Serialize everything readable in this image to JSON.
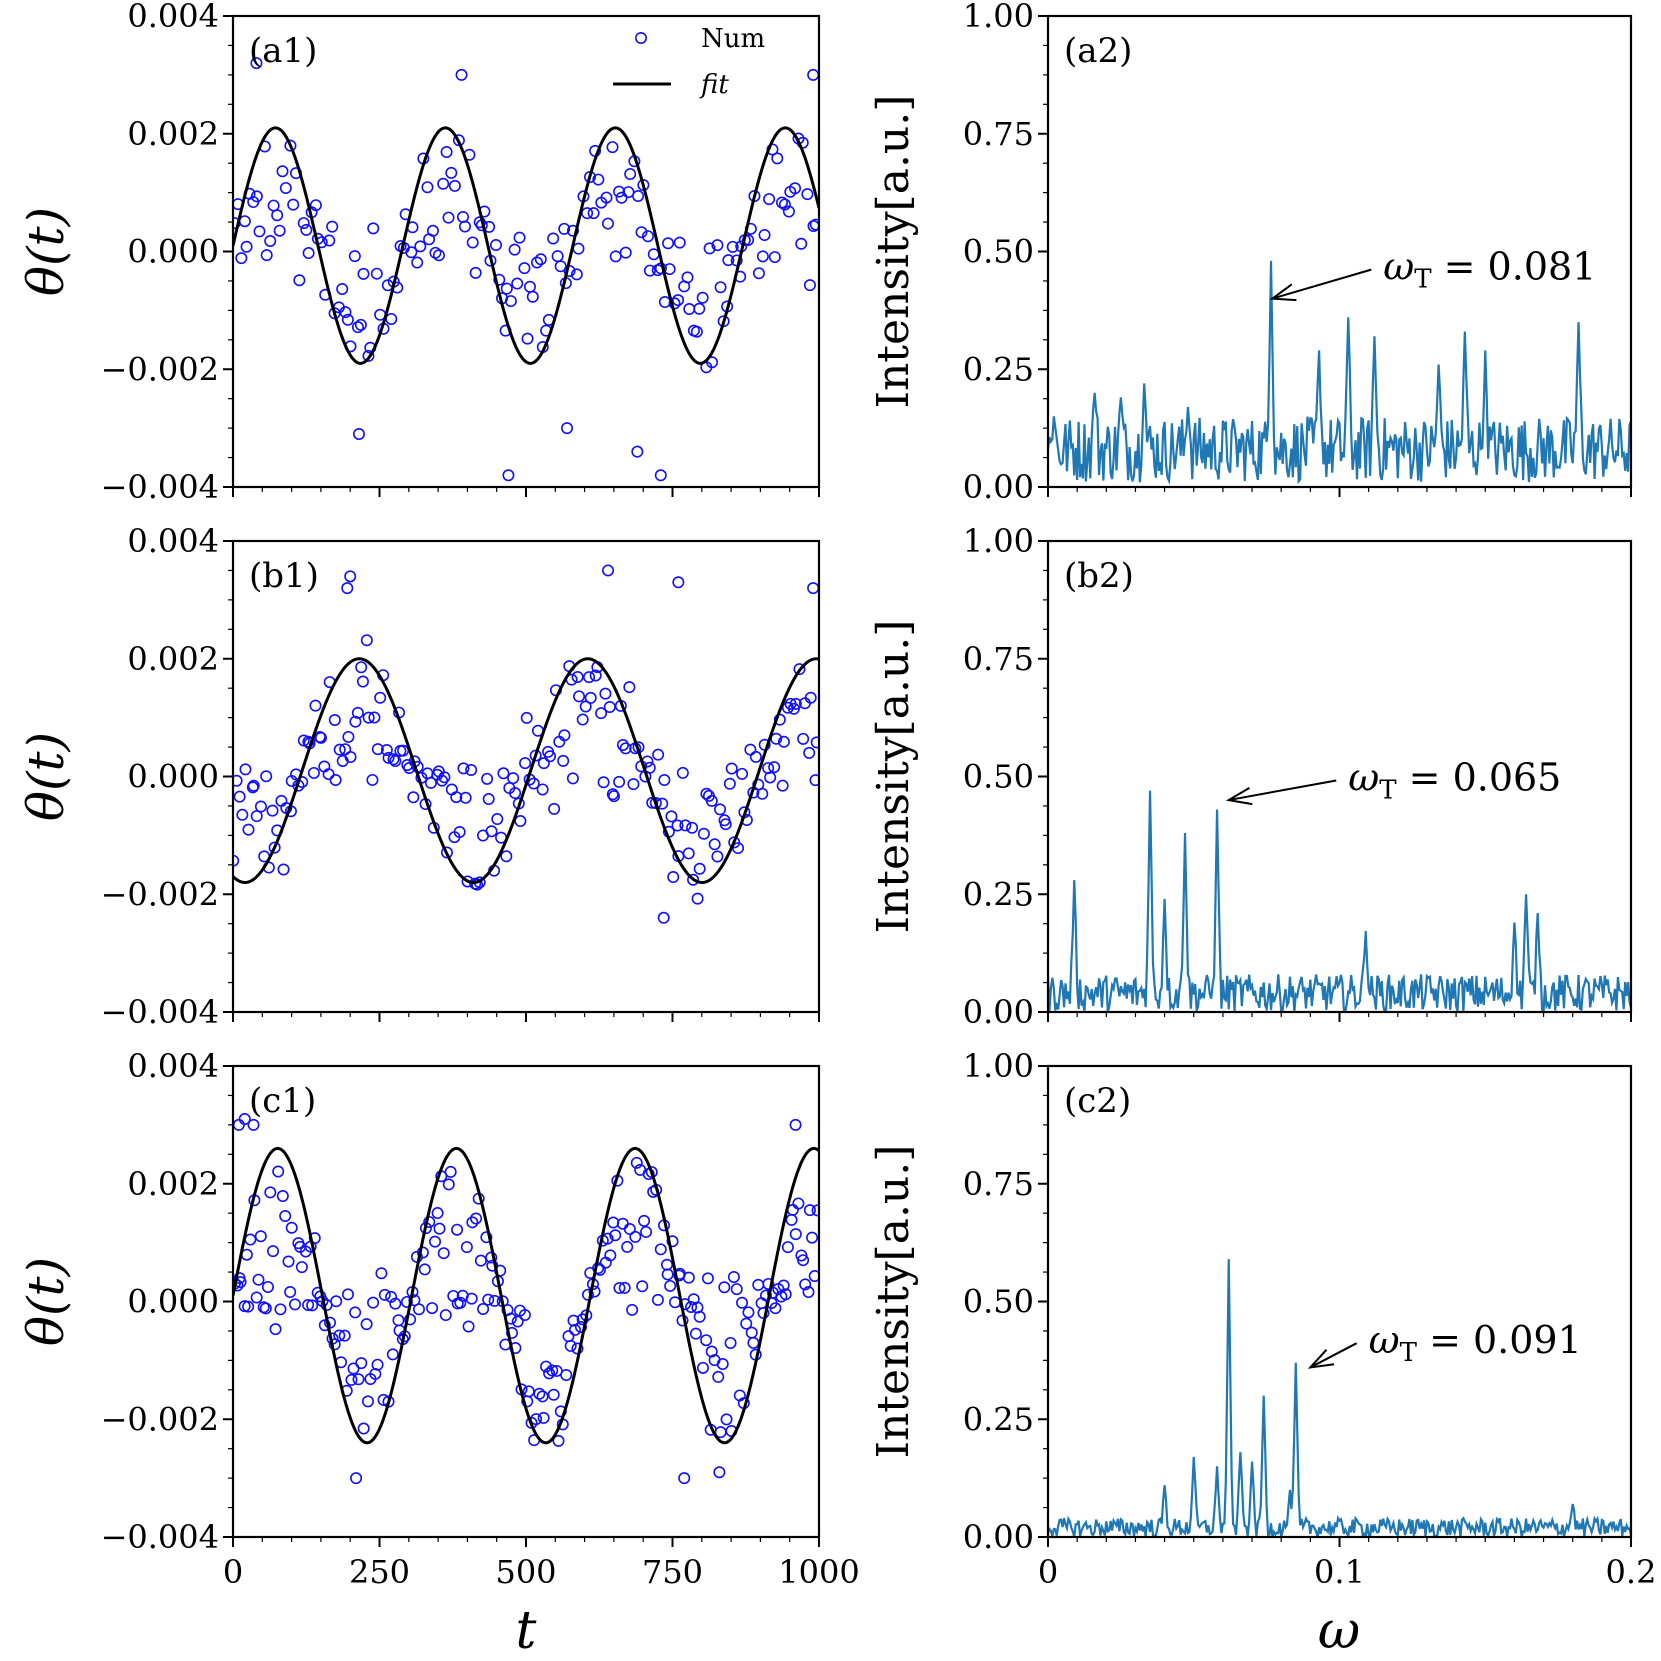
{
  "figure": {
    "left_xlabel": "t",
    "right_xlabel": "ω",
    "left_ylabel": "θ(t)",
    "right_ylabel": "Intensity[a.u.]",
    "legend": {
      "num_label": "Num",
      "fit_label": "fit"
    }
  },
  "colors": {
    "num": "#1010ff",
    "fit": "#000000",
    "spectrum": "#1f77b4"
  },
  "chart_data": [
    {
      "id": "a1",
      "type": "scatter",
      "label": "(a1)",
      "xlim": [
        0,
        1000
      ],
      "ylim": [
        -0.004,
        0.004
      ],
      "xticks": [
        0,
        250,
        500,
        750,
        1000
      ],
      "xtick_labels": [
        "0",
        "250",
        "500",
        "750",
        "1000"
      ],
      "yticks": [
        -0.004,
        -0.002,
        0.0,
        0.002,
        0.004
      ],
      "ytick_labels": [
        "−0.004",
        "−0.002",
        "0.000",
        "0.002",
        "0.004"
      ],
      "fit": {
        "amplitude": 0.002,
        "offset": 0.0001,
        "period": 290,
        "phase": 0
      },
      "scatter": {
        "n_points": 180,
        "scatter_sd": 0.0011,
        "outliers": [
          [
            40,
            0.0032
          ],
          [
            215,
            -0.0031
          ],
          [
            390,
            0.003
          ],
          [
            470,
            -0.0038
          ],
          [
            570,
            -0.003
          ],
          [
            690,
            -0.0034
          ],
          [
            730,
            -0.0038
          ],
          [
            990,
            0.003
          ]
        ]
      }
    },
    {
      "id": "a2",
      "type": "line",
      "label": "(a2)",
      "xlim": [
        0,
        0.2
      ],
      "ylim": [
        0,
        1.0
      ],
      "xticks": [
        0,
        0.1,
        0.2
      ],
      "xtick_labels": [
        "0",
        "0.1",
        "0.2"
      ],
      "yticks": [
        0,
        0.25,
        0.5,
        0.75,
        1.0
      ],
      "ytick_labels": [
        "0.00",
        "0.25",
        "0.50",
        "0.75",
        "1.00"
      ],
      "annotation": {
        "text": "ωT = 0.081",
        "symbol": "ω",
        "sub": "T",
        "value": "= 0.081",
        "arrow_to": [
          0.077,
          0.4
        ],
        "text_at": [
          0.115,
          0.47
        ]
      },
      "noise": {
        "base": 0.08,
        "spread": 0.07,
        "n": 400
      },
      "peaks": [
        [
          0.002,
          0.15
        ],
        [
          0.016,
          0.2
        ],
        [
          0.025,
          0.19
        ],
        [
          0.033,
          0.22
        ],
        [
          0.048,
          0.17
        ],
        [
          0.0765,
          0.48
        ],
        [
          0.093,
          0.29
        ],
        [
          0.103,
          0.36
        ],
        [
          0.112,
          0.32
        ],
        [
          0.134,
          0.26
        ],
        [
          0.143,
          0.33
        ],
        [
          0.15,
          0.29
        ],
        [
          0.182,
          0.35
        ]
      ]
    },
    {
      "id": "b1",
      "type": "scatter",
      "label": "(b1)",
      "xlim": [
        0,
        1000
      ],
      "ylim": [
        -0.004,
        0.004
      ],
      "xticks": [
        0,
        250,
        500,
        750,
        1000
      ],
      "xtick_labels": [
        "0",
        "250",
        "500",
        "750",
        "1000"
      ],
      "yticks": [
        -0.004,
        -0.002,
        0.0,
        0.002,
        0.004
      ],
      "ytick_labels": [
        "−0.004",
        "−0.002",
        "0.000",
        "0.002",
        "0.004"
      ],
      "fit": {
        "amplitude": 0.0019,
        "offset": 0.0001,
        "period": 390,
        "phase": -1.9
      },
      "scatter": {
        "n_points": 200,
        "scatter_sd": 0.001,
        "outliers": [
          [
            200,
            0.0034
          ],
          [
            195,
            0.0032
          ],
          [
            640,
            0.0035
          ],
          [
            760,
            0.0033
          ],
          [
            735,
            -0.0024
          ],
          [
            990,
            0.0032
          ]
        ]
      }
    },
    {
      "id": "b2",
      "type": "line",
      "label": "(b2)",
      "xlim": [
        0,
        0.2
      ],
      "ylim": [
        0,
        1.0
      ],
      "xticks": [
        0,
        0.1,
        0.2
      ],
      "xtick_labels": [
        "0",
        "0.1",
        "0.2"
      ],
      "yticks": [
        0,
        0.25,
        0.5,
        0.75,
        1.0
      ],
      "ytick_labels": [
        "0.00",
        "0.25",
        "0.50",
        "0.75",
        "1.00"
      ],
      "annotation": {
        "text": "ωT = 0.065",
        "symbol": "ω",
        "sub": "T",
        "value": "= 0.065",
        "arrow_to": [
          0.062,
          0.45
        ],
        "text_at": [
          0.103,
          0.5
        ]
      },
      "noise": {
        "base": 0.04,
        "spread": 0.04,
        "n": 400
      },
      "peaks": [
        [
          0.009,
          0.28
        ],
        [
          0.035,
          0.47
        ],
        [
          0.04,
          0.24
        ],
        [
          0.047,
          0.38
        ],
        [
          0.058,
          0.43
        ],
        [
          0.109,
          0.17
        ],
        [
          0.16,
          0.19
        ],
        [
          0.164,
          0.25
        ],
        [
          0.168,
          0.21
        ]
      ]
    },
    {
      "id": "c1",
      "type": "scatter",
      "label": "(c1)",
      "xlim": [
        0,
        1000
      ],
      "ylim": [
        -0.004,
        0.004
      ],
      "xticks": [
        0,
        250,
        500,
        750,
        1000
      ],
      "xtick_labels": [
        "0",
        "250",
        "500",
        "750",
        "1000"
      ],
      "yticks": [
        -0.004,
        -0.002,
        0.0,
        0.002,
        0.004
      ],
      "ytick_labels": [
        "−0.004",
        "−0.002",
        "0.000",
        "0.002",
        "0.004"
      ],
      "fit": {
        "amplitude": 0.0025,
        "offset": 0.0001,
        "period": 305,
        "phase": 0
      },
      "scatter": {
        "n_points": 240,
        "scatter_sd": 0.0009,
        "outliers": [
          [
            10,
            0.003
          ],
          [
            20,
            0.0031
          ],
          [
            35,
            0.003
          ],
          [
            210,
            -0.003
          ],
          [
            770,
            -0.003
          ],
          [
            830,
            -0.0029
          ],
          [
            960,
            0.003
          ]
        ]
      }
    },
    {
      "id": "c2",
      "type": "line",
      "label": "(c2)",
      "xlim": [
        0,
        0.2
      ],
      "ylim": [
        0,
        1.0
      ],
      "xticks": [
        0,
        0.1,
        0.2
      ],
      "xtick_labels": [
        "0",
        "0.1",
        "0.2"
      ],
      "yticks": [
        0,
        0.25,
        0.5,
        0.75,
        1.0
      ],
      "ytick_labels": [
        "0.00",
        "0.25",
        "0.50",
        "0.75",
        "1.00"
      ],
      "annotation": {
        "text": "ωT = 0.091",
        "symbol": "ω",
        "sub": "T",
        "value": "= 0.091",
        "arrow_to": [
          0.09,
          0.36
        ],
        "text_at": [
          0.11,
          0.42
        ]
      },
      "noise": {
        "base": 0.02,
        "spread": 0.02,
        "n": 400
      },
      "peaks": [
        [
          0.04,
          0.11
        ],
        [
          0.05,
          0.17
        ],
        [
          0.058,
          0.15
        ],
        [
          0.062,
          0.59
        ],
        [
          0.066,
          0.18
        ],
        [
          0.07,
          0.16
        ],
        [
          0.074,
          0.3
        ],
        [
          0.083,
          0.1
        ],
        [
          0.085,
          0.37
        ],
        [
          0.18,
          0.07
        ]
      ]
    }
  ]
}
